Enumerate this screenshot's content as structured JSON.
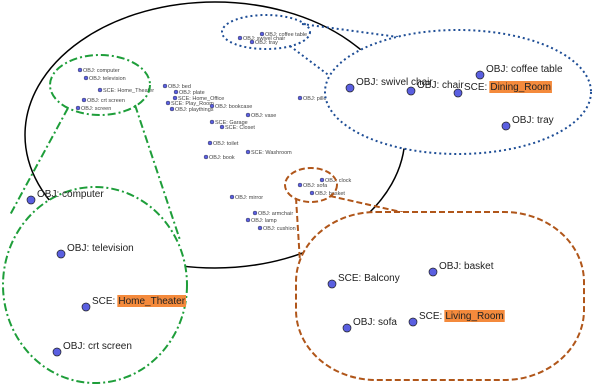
{
  "overview": {
    "nodes": [
      "OBJ: coffee table",
      "OBJ: swivel chair",
      "OBJ: tray",
      "OBJ: computer",
      "OBJ: television",
      "SCE: Home_Theater",
      "OBJ: crt screen",
      "OBJ: screen",
      "OBJ: bed",
      "OBJ: plate",
      "SCE: Home_Office",
      "SCE: Play_Room",
      "OBJ: playthings",
      "OBJ: bookcase",
      "SCE: Garage",
      "SCE: Closet",
      "OBJ: vase",
      "OBJ: toilet",
      "SCE: Washroom",
      "OBJ: book",
      "OBJ: clock",
      "OBJ: basket",
      "OBJ: sofa",
      "OBJ: mirror",
      "OBJ: armchair",
      "OBJ: lamp",
      "OBJ: cushion",
      "OBJ: pillow"
    ]
  },
  "zoom_home_theater": {
    "nodes": [
      {
        "label": "OBJ: computer"
      },
      {
        "label": "OBJ: television"
      },
      {
        "label": "SCE:",
        "highlight": "Home_Theater"
      },
      {
        "label": "OBJ: crt screen"
      }
    ]
  },
  "zoom_dining_room": {
    "nodes": [
      {
        "label": "OBJ: swivel chair"
      },
      {
        "label": "OBJ: chair"
      },
      {
        "label": "OBJ: coffee table"
      },
      {
        "label": "SCE:",
        "highlight": "Dining_Room"
      },
      {
        "label": "OBJ: tray"
      }
    ]
  },
  "zoom_living_room": {
    "nodes": [
      {
        "label": "SCE: Balcony"
      },
      {
        "label": "OBJ: basket"
      },
      {
        "label": "OBJ: sofa"
      },
      {
        "label": "SCE:",
        "highlight": "Living_Room"
      }
    ]
  }
}
